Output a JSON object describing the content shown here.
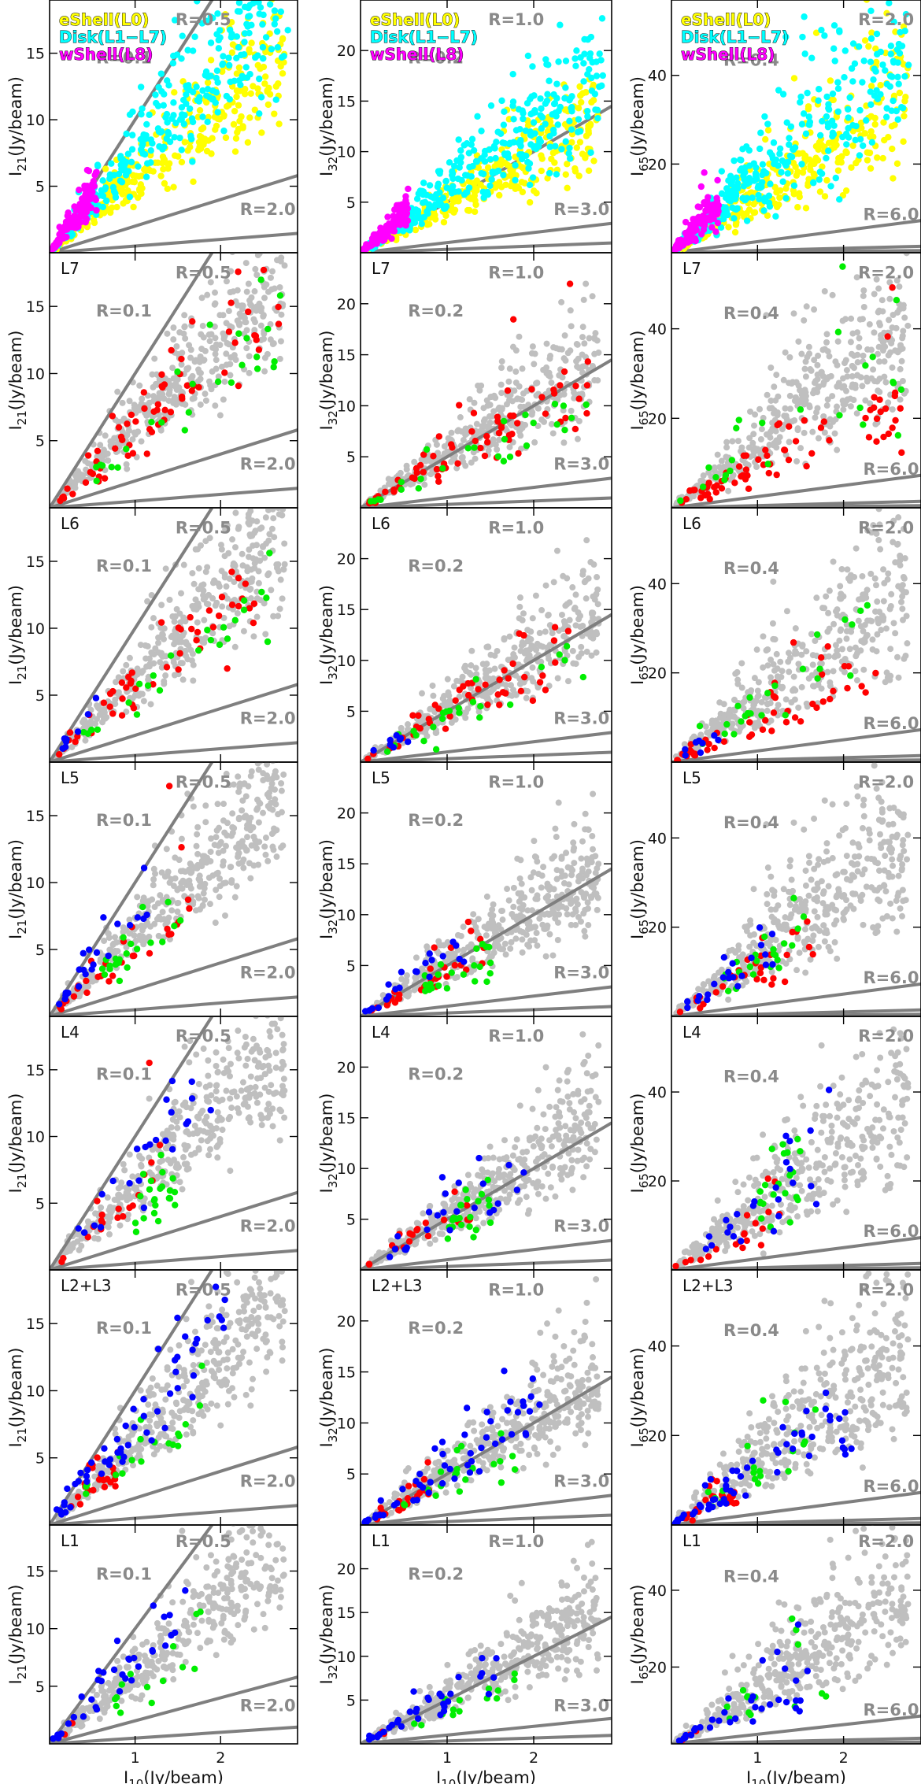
{
  "colors": {
    "background": "#bfbfbf",
    "eShell": "#ffff00",
    "Disk": "#00ffff",
    "wShell": "#ff00ff",
    "red": "#ff0000",
    "green": "#00ee00",
    "blue": "#0000ff",
    "ratio_line": "#7f7f7f"
  },
  "chart_data": {
    "type": "scatter",
    "layout": "7 rows x 3 columns grid of scatter panels",
    "x_axis": {
      "label_base": "I",
      "label_sub": "10",
      "label_unit": "(Jy/beam)",
      "ticks": [
        1,
        2
      ],
      "range": [
        0,
        2.9
      ]
    },
    "columns": [
      {
        "id": "I21",
        "ylabel_base": "I",
        "ylabel_sub": "21",
        "ylabel_unit": "(Jy/beam)",
        "yticks": [
          5,
          10,
          15
        ],
        "ylim": [
          0,
          19
        ],
        "ratio_lines": [
          {
            "label": "R=0.1",
            "value": 0.1
          },
          {
            "label": "R=0.5",
            "value": 0.5
          },
          {
            "label": "R=2.0",
            "value": 2.0
          }
        ],
        "cloud": {
          "scale": 6.3,
          "spread": 0.2
        },
        "groups": {
          "red": 1.0,
          "green": 0.85,
          "blue": 1.3
        }
      },
      {
        "id": "I32",
        "ylabel_base": "I",
        "ylabel_sub": "32",
        "ylabel_unit": "(Jy/beam)",
        "yticks": [
          5,
          10,
          15,
          20
        ],
        "ylim": [
          0,
          25
        ],
        "ratio_lines": [
          {
            "label": "R=0.2",
            "value": 0.2
          },
          {
            "label": "R=1.0",
            "value": 1.0
          },
          {
            "label": "R=3.0",
            "value": 3.0
          }
        ],
        "cloud": {
          "scale": 5.3,
          "spread": 0.22
        },
        "groups": {
          "red": 1.0,
          "green": 0.85,
          "blue": 1.15
        }
      },
      {
        "id": "I65",
        "ylabel_base": "I",
        "ylabel_sub": "65",
        "ylabel_unit": "(Jy/beam)",
        "yticks": [
          20,
          40
        ],
        "ylim": [
          0,
          57
        ],
        "ratio_lines": [
          {
            "label": "R=0.4",
            "value": 0.4
          },
          {
            "label": "R=2.0",
            "value": 2.0
          },
          {
            "label": "R=6.0",
            "value": 6.0
          }
        ],
        "cloud": {
          "scale": 14.5,
          "spread": 0.3
        },
        "groups": {
          "red": 0.75,
          "green": 1.0,
          "blue": 0.95
        }
      }
    ],
    "legend": [
      {
        "label": "eShell(L0)",
        "color": "#ffff00"
      },
      {
        "label": "Disk(L1−L7)",
        "color": "#00ffff"
      },
      {
        "label": "wShell(L8)",
        "color": "#ff00ff"
      }
    ],
    "rows": [
      {
        "panel_label": "",
        "layer": "all",
        "series": [
          {
            "name": "eShell(L0)",
            "color": "#ffff00",
            "n": 330,
            "xmin": 0.05,
            "xmax": 2.75,
            "factor": 0.9
          },
          {
            "name": "Disk(L1-L7)",
            "color": "#00ffff",
            "n": 330,
            "xmin": 0.05,
            "xmax": 2.8,
            "factor": 1.15
          },
          {
            "name": "wShell(L8)",
            "color": "#ff00ff",
            "n": 140,
            "xmin": 0.02,
            "xmax": 0.55,
            "factor": 1.4
          }
        ]
      },
      {
        "panel_label": "L7",
        "series": [
          {
            "name": "red",
            "color": "#ff0000",
            "n": 70,
            "xmin": 0.1,
            "xmax": 2.7
          },
          {
            "name": "green",
            "color": "#00ee00",
            "n": 26,
            "xmin": 0.1,
            "xmax": 2.7
          }
        ]
      },
      {
        "panel_label": "L6",
        "series": [
          {
            "name": "red",
            "color": "#ff0000",
            "n": 50,
            "xmin": 0.05,
            "xmax": 2.4
          },
          {
            "name": "green",
            "color": "#00ee00",
            "n": 24,
            "xmin": 0.15,
            "xmax": 2.6
          },
          {
            "name": "blue",
            "color": "#0000ff",
            "n": 8,
            "xmin": 0.1,
            "xmax": 0.55
          }
        ]
      },
      {
        "panel_label": "L5",
        "series": [
          {
            "name": "red",
            "color": "#ff0000",
            "n": 30,
            "xmin": 0.1,
            "xmax": 1.65
          },
          {
            "name": "green",
            "color": "#00ee00",
            "n": 22,
            "xmin": 0.6,
            "xmax": 1.6
          },
          {
            "name": "blue",
            "color": "#0000ff",
            "n": 22,
            "xmin": 0.05,
            "xmax": 1.2
          }
        ]
      },
      {
        "panel_label": "L4",
        "series": [
          {
            "name": "red",
            "color": "#ff0000",
            "n": 20,
            "xmin": 0.05,
            "xmax": 1.3
          },
          {
            "name": "green",
            "color": "#00ee00",
            "n": 22,
            "xmin": 1.0,
            "xmax": 1.5
          },
          {
            "name": "blue",
            "color": "#0000ff",
            "n": 24,
            "xmin": 0.2,
            "xmax": 1.9
          }
        ]
      },
      {
        "panel_label": "L2+L3",
        "series": [
          {
            "name": "red",
            "color": "#ff0000",
            "n": 24,
            "xmin": 0.1,
            "xmax": 0.8
          },
          {
            "name": "green",
            "color": "#00ee00",
            "n": 20,
            "xmin": 0.4,
            "xmax": 1.8
          },
          {
            "name": "blue",
            "color": "#0000ff",
            "n": 55,
            "xmin": 0.02,
            "xmax": 2.1
          }
        ]
      },
      {
        "panel_label": "L1",
        "series": [
          {
            "name": "red",
            "color": "#ff0000",
            "n": 3,
            "xmin": 0.1,
            "xmax": 0.3
          },
          {
            "name": "green",
            "color": "#00ee00",
            "n": 14,
            "xmin": 0.6,
            "xmax": 1.8
          },
          {
            "name": "blue",
            "color": "#0000ff",
            "n": 34,
            "xmin": 0.02,
            "xmax": 1.6
          }
        ]
      }
    ]
  }
}
